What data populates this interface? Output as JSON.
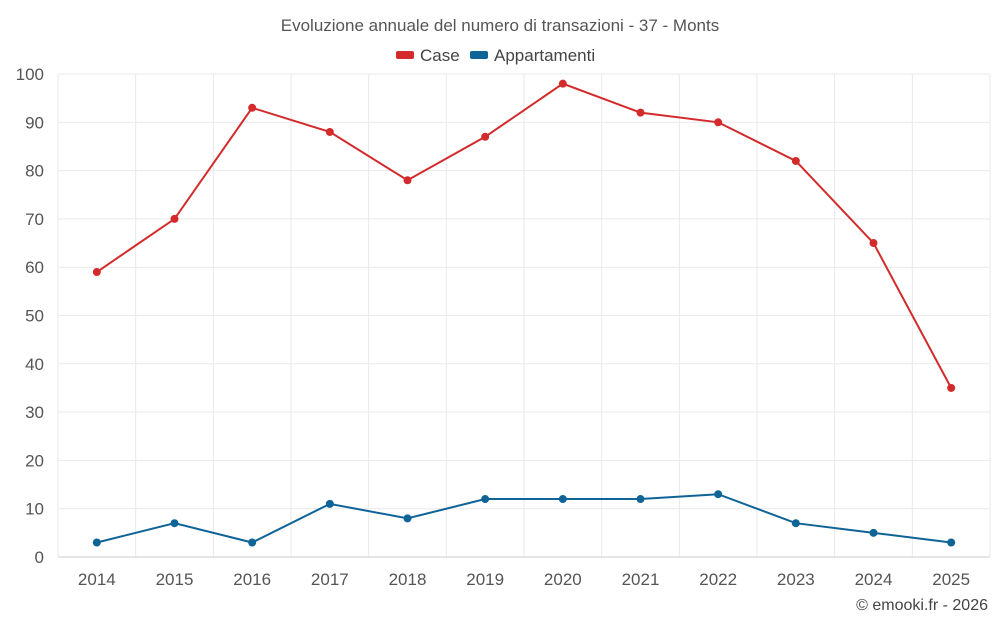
{
  "chart_data": {
    "type": "line",
    "title": "Evoluzione annuale del numero di transazioni - 37 - Monts",
    "categories": [
      "2014",
      "2015",
      "2016",
      "2017",
      "2018",
      "2019",
      "2020",
      "2021",
      "2022",
      "2023",
      "2024",
      "2025"
    ],
    "series": [
      {
        "name": "Case",
        "color": "#d32b2b",
        "values": [
          59,
          70,
          93,
          88,
          78,
          87,
          98,
          92,
          90,
          82,
          65,
          35
        ]
      },
      {
        "name": "Appartamenti",
        "color": "#0e6397",
        "values": [
          3,
          7,
          3,
          11,
          8,
          12,
          12,
          12,
          13,
          7,
          5,
          3
        ]
      }
    ],
    "ylim": [
      0,
      100
    ],
    "yticks": [
      0,
      10,
      20,
      30,
      40,
      50,
      60,
      70,
      80,
      90,
      100
    ],
    "xlabel": "",
    "ylabel": "",
    "grid": true,
    "legend_position": "top-center"
  },
  "credit": "© emooki.fr - 2026"
}
